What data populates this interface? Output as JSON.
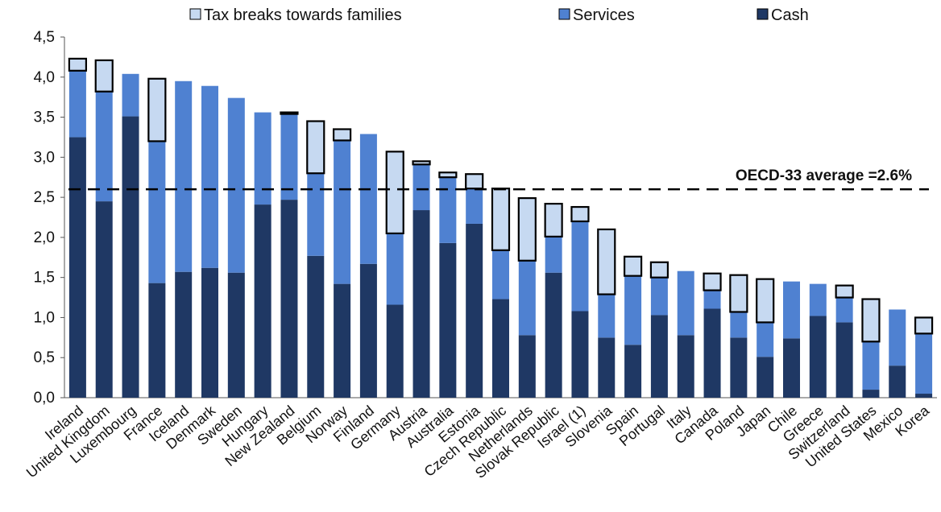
{
  "chart_data": {
    "type": "bar",
    "stacked": true,
    "categories": [
      "Ireland",
      "United Kingdom",
      "Luxembourg",
      "France",
      "Iceland",
      "Denmark",
      "Sweden",
      "Hungary",
      "New Zealand",
      "Belgium",
      "Norway",
      "Finland",
      "Germany",
      "Austria",
      "Australia",
      "Estonia",
      "Czech Republic",
      "Netherlands",
      "Slovak Republic",
      "Israel (1)",
      "Slovenia",
      "Spain",
      "Portugal",
      "Italy",
      "Canada",
      "Poland",
      "Japan",
      "Chile",
      "Greece",
      "Switzerland",
      "United States",
      "Mexico",
      "Korea"
    ],
    "series": [
      {
        "name": "Cash",
        "color": "#1f3864",
        "values": [
          3.25,
          2.45,
          3.51,
          1.43,
          1.57,
          1.62,
          1.56,
          2.41,
          2.47,
          1.77,
          1.42,
          1.67,
          1.16,
          2.34,
          1.93,
          2.17,
          1.23,
          0.78,
          1.56,
          1.08,
          0.75,
          0.66,
          1.03,
          0.78,
          1.11,
          0.75,
          0.51,
          0.74,
          1.02,
          0.94,
          0.1,
          0.4,
          0.05
        ]
      },
      {
        "name": "Services",
        "color": "#4f81d1",
        "values": [
          0.83,
          1.37,
          0.53,
          1.77,
          2.38,
          2.27,
          2.18,
          1.15,
          1.07,
          1.03,
          1.79,
          1.62,
          0.89,
          0.57,
          0.82,
          0.44,
          0.61,
          0.93,
          0.45,
          1.12,
          0.54,
          0.86,
          0.47,
          0.8,
          0.23,
          0.32,
          0.43,
          0.71,
          0.4,
          0.31,
          0.6,
          0.7,
          0.75
        ]
      },
      {
        "name": "Tax breaks towards families",
        "color": "#c6d9f1",
        "values": [
          0.15,
          0.39,
          0.0,
          0.78,
          0.0,
          0.0,
          0.0,
          0.0,
          0.02,
          0.65,
          0.14,
          0.0,
          1.02,
          0.04,
          0.06,
          0.18,
          0.77,
          0.78,
          0.41,
          0.18,
          0.81,
          0.24,
          0.19,
          0.0,
          0.21,
          0.46,
          0.54,
          0.0,
          0.0,
          0.15,
          0.53,
          0.0,
          0.2
        ]
      }
    ],
    "legend": [
      "Tax breaks towards families",
      "Services",
      "Cash"
    ],
    "legend_position": "top",
    "y_ticks": [
      "0,0",
      "0,5",
      "1,0",
      "1,5",
      "2,0",
      "2,5",
      "3,0",
      "3,5",
      "4,0",
      "4,5"
    ],
    "ylim": [
      0,
      4.5
    ],
    "reference_line": {
      "value": 2.6,
      "label": "OECD-33 average =2.6%"
    },
    "grid": false
  }
}
